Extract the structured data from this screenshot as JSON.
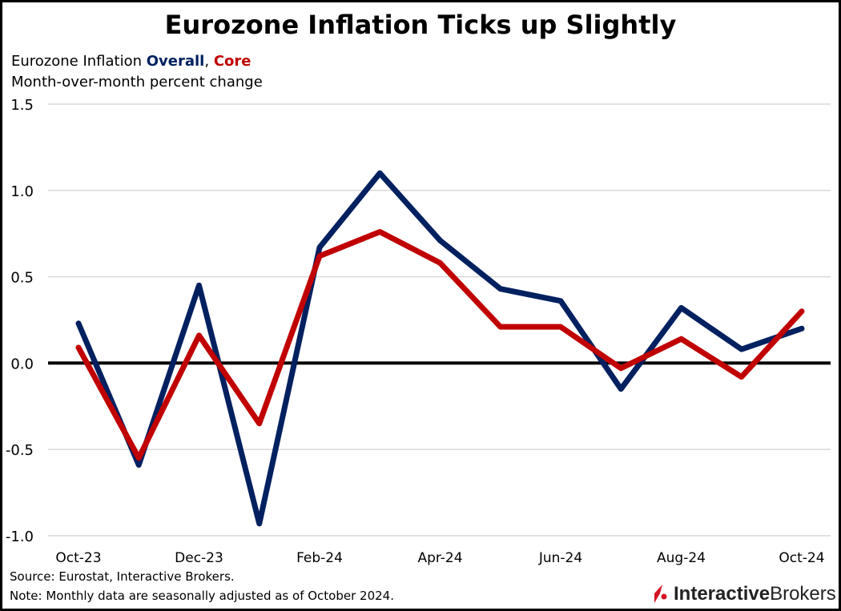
{
  "title": "Eurozone Inflation Ticks up Slightly",
  "subtitle": {
    "prefix": "Eurozone Inflation ",
    "overall": "Overall",
    "sep": ", ",
    "core": "Core"
  },
  "subtitle2": "Month-over-month percent change",
  "footer": {
    "source": "Source: Eurostat, Interactive Brokers.",
    "note": "Note: Monthly data are seasonally adjusted as of October 2024."
  },
  "logo": {
    "bold": "Interactive",
    "regular": "Brokers"
  },
  "chart_data": {
    "type": "line",
    "x": [
      "Oct-23",
      "Nov-23",
      "Dec-23",
      "Jan-24",
      "Feb-24",
      "Mar-24",
      "Apr-24",
      "May-24",
      "Jun-24",
      "Jul-24",
      "Aug-24",
      "Sep-24",
      "Oct-24"
    ],
    "xtick_labels": [
      "Oct-23",
      "Dec-23",
      "Feb-24",
      "Apr-24",
      "Jun-24",
      "Aug-24",
      "Oct-24"
    ],
    "ylim": [
      -1.0,
      1.5
    ],
    "yticks": [
      "1.5",
      "1.0",
      "0.5",
      "0.0",
      "-0.5",
      "-1.0"
    ],
    "grid": true,
    "series": [
      {
        "name": "Overall",
        "color": "#002060",
        "values": [
          0.23,
          -0.59,
          0.45,
          -0.93,
          0.67,
          1.1,
          0.71,
          0.43,
          0.36,
          -0.15,
          0.32,
          0.08,
          0.2
        ]
      },
      {
        "name": "Core",
        "color": "#c00000",
        "values": [
          0.09,
          -0.55,
          0.16,
          -0.35,
          0.62,
          0.76,
          0.58,
          0.21,
          0.21,
          -0.03,
          0.14,
          -0.08,
          0.3
        ]
      }
    ]
  }
}
